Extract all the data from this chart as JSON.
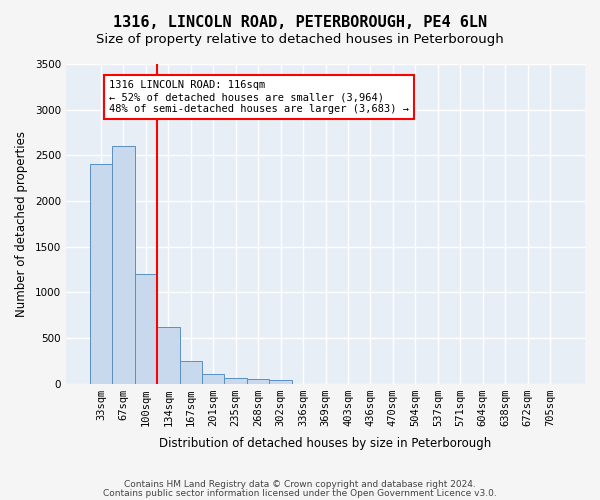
{
  "title": "1316, LINCOLN ROAD, PETERBOROUGH, PE4 6LN",
  "subtitle": "Size of property relative to detached houses in Peterborough",
  "xlabel": "Distribution of detached houses by size in Peterborough",
  "ylabel": "Number of detached properties",
  "footer_line1": "Contains HM Land Registry data © Crown copyright and database right 2024.",
  "footer_line2": "Contains public sector information licensed under the Open Government Licence v3.0.",
  "bin_labels": [
    "33sqm",
    "67sqm",
    "100sqm",
    "134sqm",
    "167sqm",
    "201sqm",
    "235sqm",
    "268sqm",
    "302sqm",
    "336sqm",
    "369sqm",
    "403sqm",
    "436sqm",
    "470sqm",
    "504sqm",
    "537sqm",
    "571sqm",
    "604sqm",
    "638sqm",
    "672sqm",
    "705sqm"
  ],
  "bar_values": [
    2400,
    2600,
    1200,
    620,
    250,
    100,
    60,
    55,
    40,
    0,
    0,
    0,
    0,
    0,
    0,
    0,
    0,
    0,
    0,
    0,
    0
  ],
  "bar_color": "#c8d9ed",
  "bar_edge_color": "#5a8fc2",
  "red_line_x": 2.5,
  "ylim": [
    0,
    3500
  ],
  "yticks": [
    0,
    500,
    1000,
    1500,
    2000,
    2500,
    3000,
    3500
  ],
  "annotation_text_line1": "1316 LINCOLN ROAD: 116sqm",
  "annotation_text_line2": "← 52% of detached houses are smaller (3,964)",
  "annotation_text_line3": "48% of semi-detached houses are larger (3,683) →",
  "background_color": "#e8eef6",
  "grid_color": "#ffffff",
  "title_fontsize": 11,
  "subtitle_fontsize": 9.5,
  "axis_label_fontsize": 8.5,
  "tick_fontsize": 7.5,
  "footer_fontsize": 6.5
}
